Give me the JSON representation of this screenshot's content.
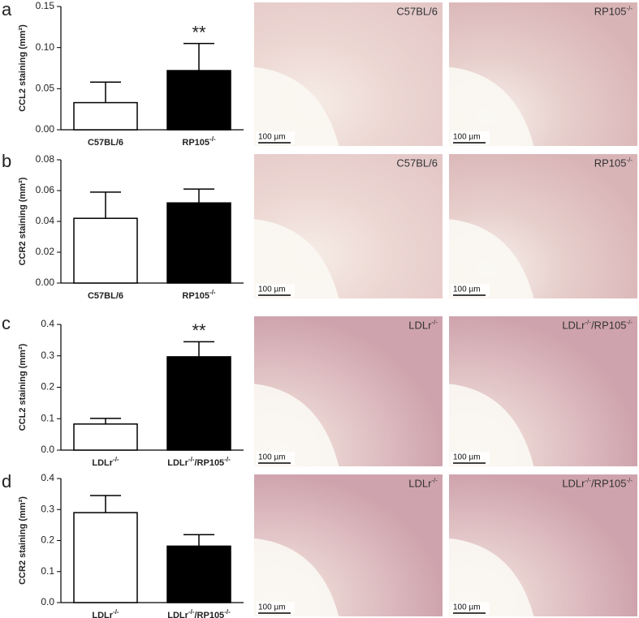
{
  "chart_data": [
    {
      "type": "bar",
      "ylabel": "CCL2 staining (mm²)",
      "categories": [
        "C57BL/6",
        "RP105-/-"
      ],
      "values": [
        0.033,
        0.072
      ],
      "errors": [
        0.025,
        0.033
      ],
      "colors": [
        "#ffffff",
        "#000000"
      ],
      "annotations": [
        null,
        "**"
      ],
      "ylim": [
        0,
        0.15
      ],
      "yticks": [
        {
          "value": 0,
          "label": "0.00"
        },
        0.05,
        {
          "value": 0.1,
          "label": "0.10"
        },
        0.15
      ]
    },
    {
      "type": "bar",
      "ylabel": "CCR2 staining (mm²)",
      "categories": [
        "C57BL/6",
        "RP105-/-"
      ],
      "values": [
        0.042,
        0.052
      ],
      "errors": [
        0.017,
        0.009
      ],
      "colors": [
        "#ffffff",
        "#000000"
      ],
      "ylim": [
        0,
        0.08
      ],
      "yticks": [
        {
          "value": 0,
          "label": "0.00"
        },
        0.02,
        0.04,
        0.06,
        0.08
      ]
    },
    {
      "type": "bar",
      "ylabel": "CCL2 staining (mm²)",
      "categories": [
        "LDLr-/-",
        "LDLr-/-/RP105-/-"
      ],
      "values": [
        0.083,
        0.297
      ],
      "errors": [
        0.018,
        0.048
      ],
      "colors": [
        "#ffffff",
        "#000000"
      ],
      "annotations": [
        null,
        "**"
      ],
      "ylim": [
        0,
        0.4
      ],
      "yticks": [
        {
          "value": 0,
          "label": "0.0"
        },
        0.1,
        0.2,
        0.3,
        0.4
      ]
    },
    {
      "type": "bar",
      "ylabel": "CCR2 staining (mm²)",
      "categories": [
        "LDLr-/-",
        "LDLr-/-/RP105-/-"
      ],
      "values": [
        0.29,
        0.182
      ],
      "errors": [
        0.055,
        0.037
      ],
      "colors": [
        "#ffffff",
        "#000000"
      ],
      "ylim": [
        0,
        0.4
      ],
      "yticks": [
        {
          "value": 0,
          "label": "0.0"
        },
        0.1,
        0.2,
        0.3,
        0.4
      ]
    }
  ],
  "panels": [
    {
      "letter": "a",
      "images": [
        {
          "label": "C57BL/6",
          "scale": "100 µm"
        },
        {
          "label": "RP105-/-",
          "scale": "100 µm"
        }
      ]
    },
    {
      "letter": "b",
      "images": [
        {
          "label": "C57BL/6",
          "scale": "100 µm"
        },
        {
          "label": "RP105-/-",
          "scale": "100 µm"
        }
      ]
    },
    {
      "letter": "c",
      "images": [
        {
          "label": "LDLr-/-",
          "scale": "100 µm"
        },
        {
          "label": "LDLr-/-/RP105-/-",
          "scale": "100 µm"
        }
      ]
    },
    {
      "letter": "d",
      "images": [
        {
          "label": "LDLr-/-",
          "scale": "100 µm"
        },
        {
          "label": "LDLr-/-/RP105-/-",
          "scale": "100 µm"
        }
      ]
    }
  ]
}
